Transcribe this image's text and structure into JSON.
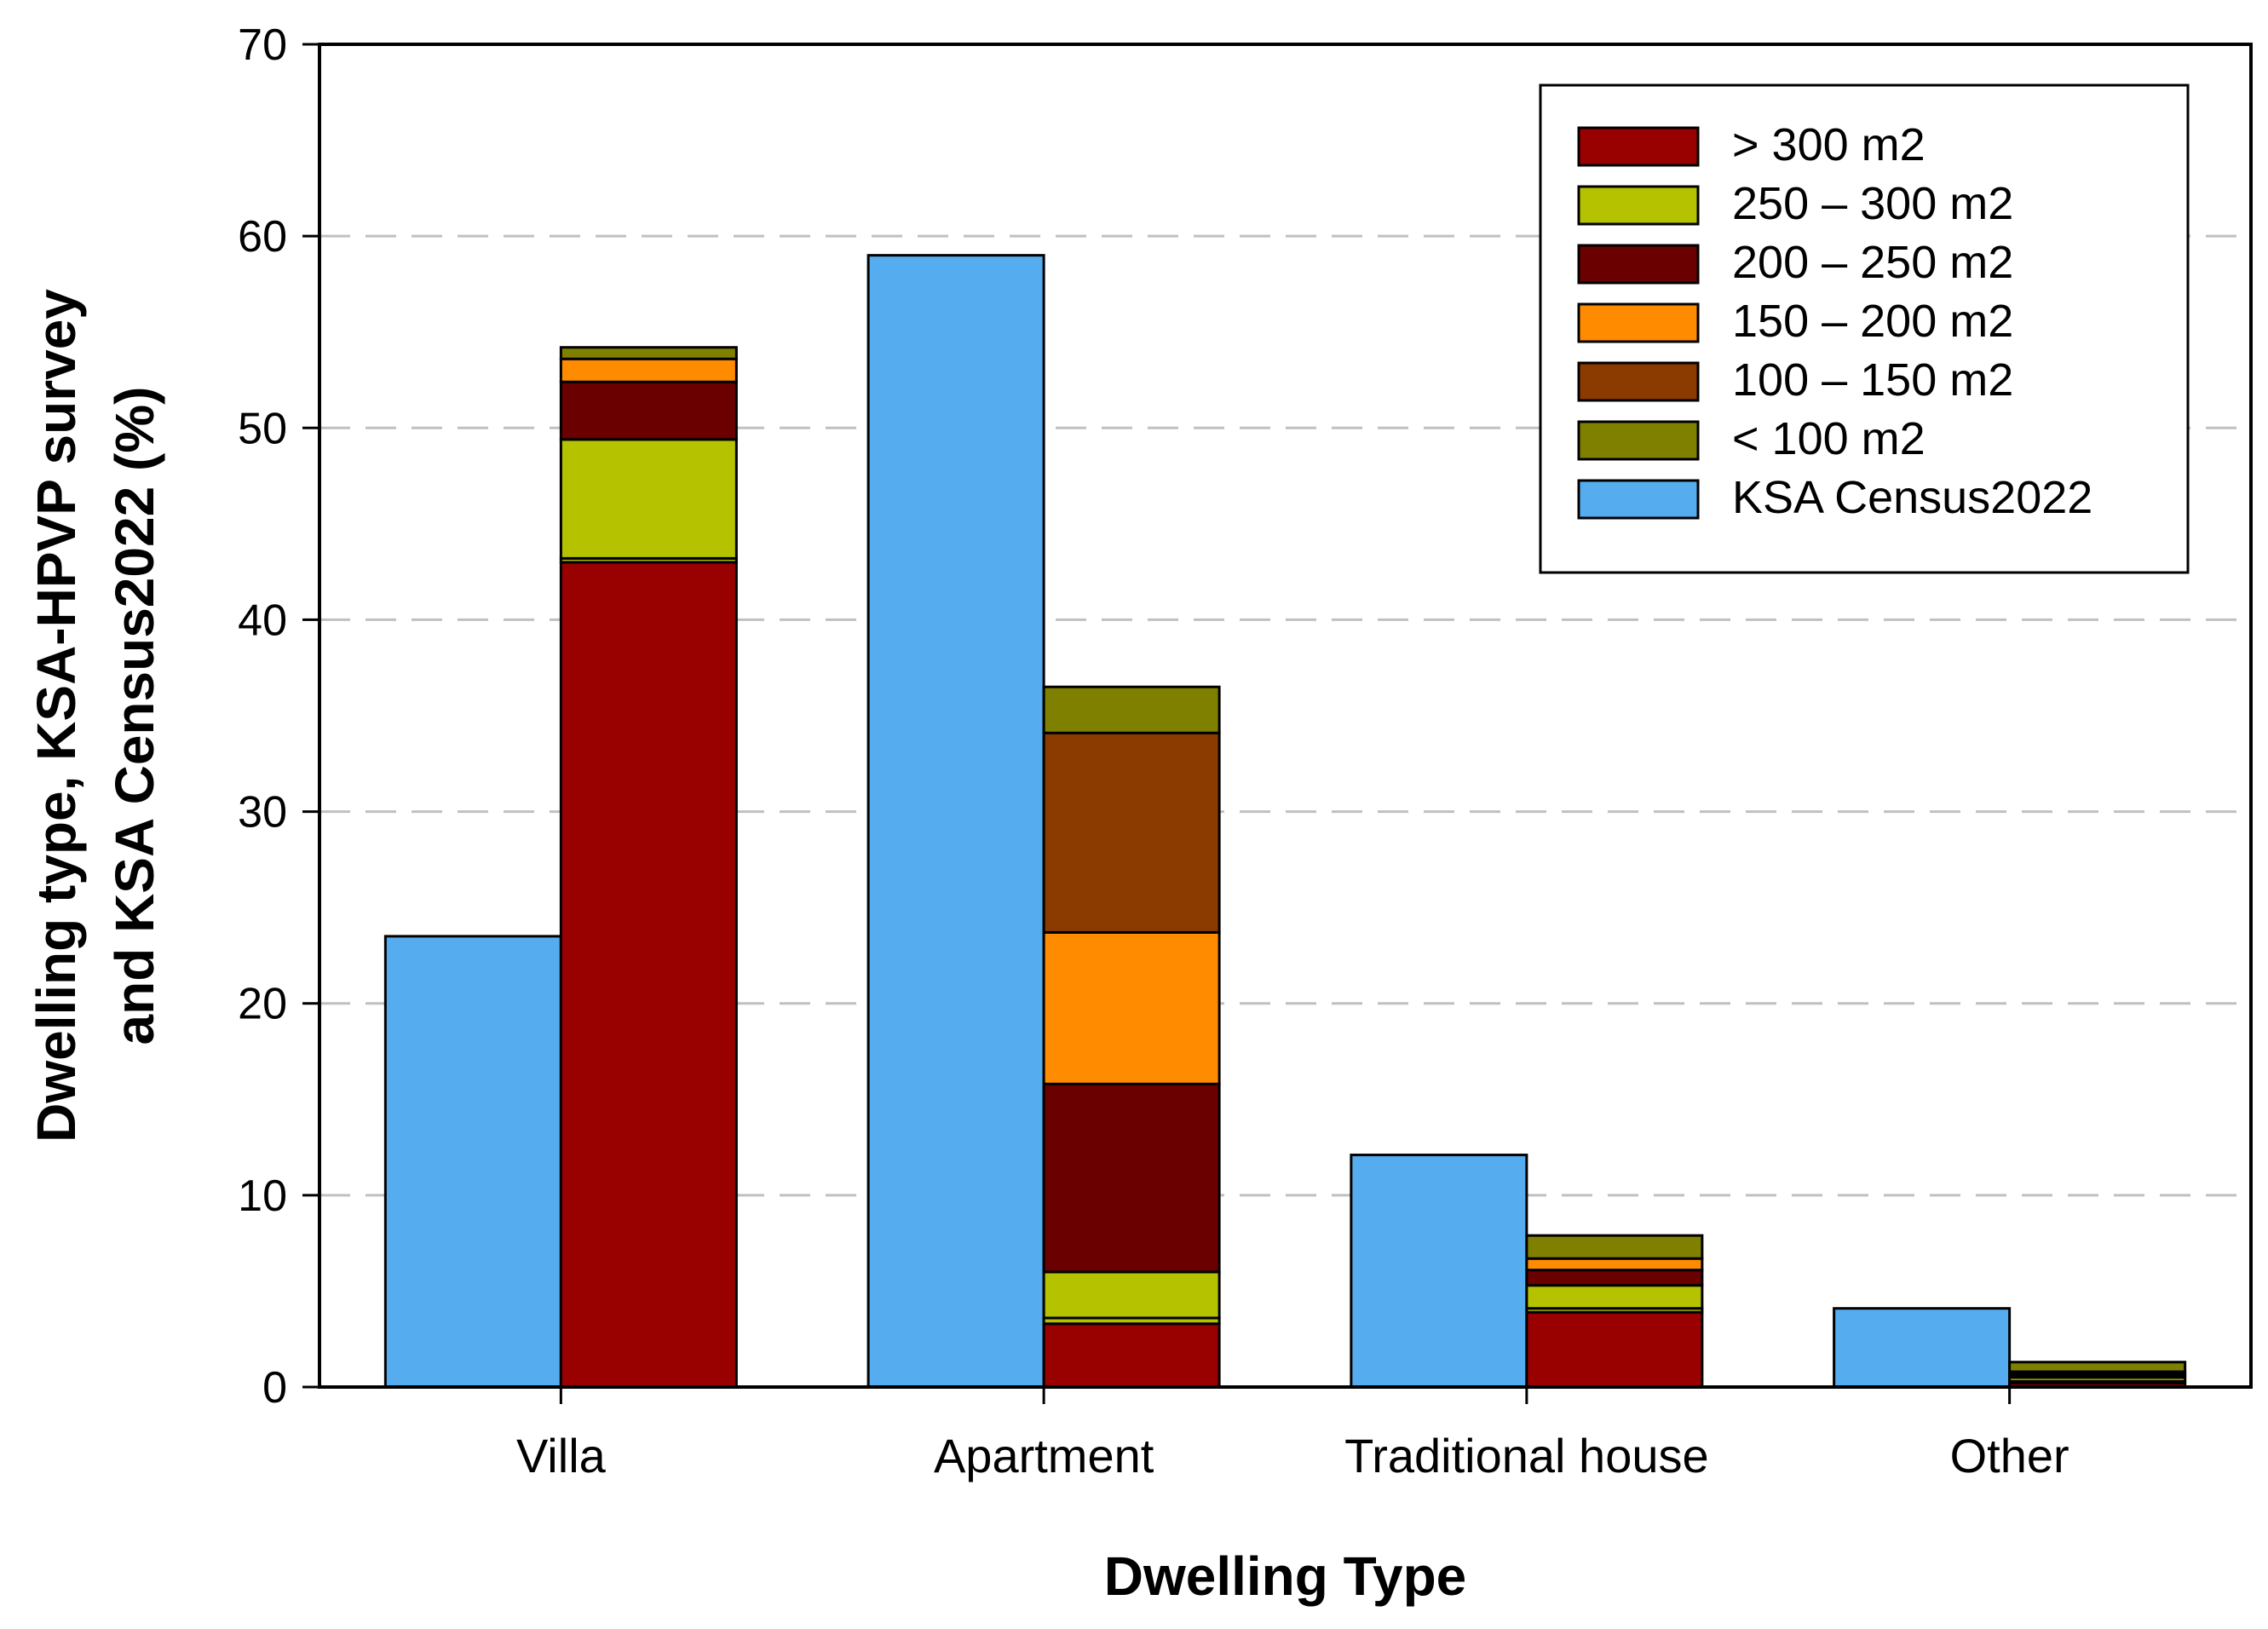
{
  "chart_data": {
    "type": "bar",
    "xlabel": "Dwelling Type",
    "ylabel_line1": "Dwelling type, KSA-HPVP survey",
    "ylabel_line2": "and KSA Census2022 (%)",
    "ylim": [
      0,
      70
    ],
    "yticks": [
      0,
      10,
      20,
      30,
      40,
      50,
      60,
      70
    ],
    "grid": true,
    "legend_position": "top-right",
    "categories": [
      "Villa",
      "Apartment",
      "Traditional house",
      "Other"
    ],
    "census": {
      "name": "KSA Census2022",
      "color": "#55acee",
      "values": [
        23.5,
        59.0,
        12.1,
        4.1
      ]
    },
    "survey_stack": [
      {
        "name": "> 300 m2",
        "color": "#990000",
        "values": [
          43.0,
          3.3,
          3.9,
          0.2
        ]
      },
      {
        "name": "250 – 300 m2",
        "color": "#b5c200",
        "values": [
          0.2,
          0.3,
          0.2,
          0.1
        ]
      },
      {
        "name": "250 – 300 m2",
        "color": "#b5c200",
        "values": [
          6.2,
          2.4,
          1.2,
          0.2
        ]
      },
      {
        "name": "200 – 250 m2",
        "color": "#6b0000",
        "values": [
          3.0,
          9.8,
          0.8,
          0.1
        ]
      },
      {
        "name": "150 – 200 m2",
        "color": "#ff8c00",
        "values": [
          1.2,
          7.9,
          0.6,
          0.1
        ]
      },
      {
        "name": "100 – 150 m2",
        "color": "#8b3a00",
        "values": [
          0.0,
          10.4,
          0.0,
          0.1
        ]
      },
      {
        "name": "< 100 m2",
        "color": "#808000",
        "values": [
          0.6,
          2.4,
          1.2,
          0.5
        ]
      }
    ],
    "legend": [
      {
        "label": "> 300 m2",
        "color": "#990000"
      },
      {
        "label": "250 – 300 m2",
        "color": "#b5c200"
      },
      {
        "label": "200 – 250 m2",
        "color": "#6b0000"
      },
      {
        "label": "150 – 200 m2",
        "color": "#ff8c00"
      },
      {
        "label": "100 – 150 m2",
        "color": "#8b3a00"
      },
      {
        "label": "< 100 m2",
        "color": "#808000"
      },
      {
        "label": "KSA Census2022",
        "color": "#55acee"
      }
    ]
  }
}
